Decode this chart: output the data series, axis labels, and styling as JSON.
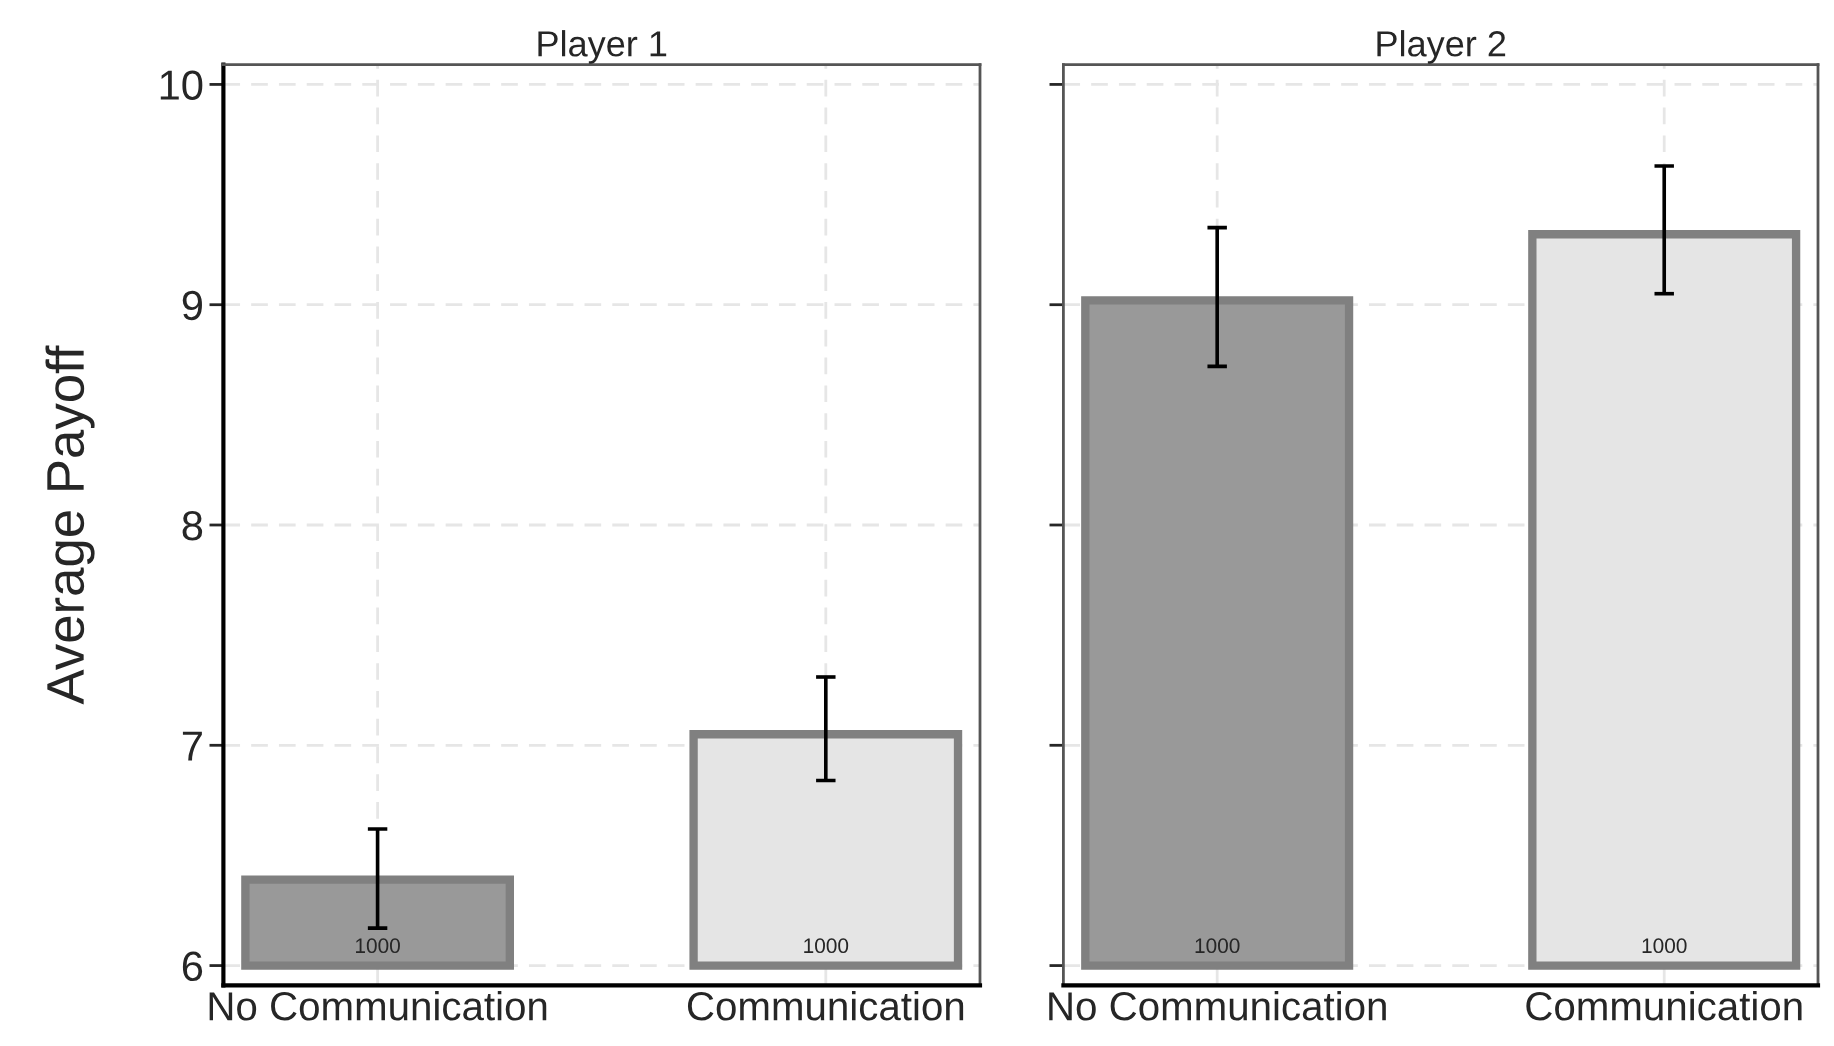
{
  "chart_data": [
    {
      "type": "bar",
      "title": "Player 1",
      "ylabel": "Average Payoff",
      "categories": [
        "No Communication",
        "Communication"
      ],
      "base": [
        6,
        6
      ],
      "values": [
        0.39,
        1.05
      ],
      "colors": [
        "#999999",
        "#e5e5e5"
      ],
      "errors": [
        [
          6.17,
          6.62
        ],
        [
          6.84,
          7.31
        ]
      ],
      "ylim": [
        5.91,
        10.09
      ],
      "yticks": [
        6,
        7,
        8,
        9,
        10
      ],
      "grid": true,
      "annotations": [
        "1000",
        "1000"
      ]
    },
    {
      "type": "bar",
      "title": "Player 2",
      "categories": [
        "No Communication",
        "Communication"
      ],
      "base": [
        6,
        6
      ],
      "values": [
        3.02,
        3.32
      ],
      "colors": [
        "#999999",
        "#e5e5e5"
      ],
      "errors": [
        [
          8.72,
          9.35
        ],
        [
          9.05,
          9.63
        ]
      ],
      "ylim": [
        5.91,
        10.09
      ],
      "yticks": [
        6,
        7,
        8,
        9,
        10
      ],
      "grid": true,
      "tick_labels": "x",
      "annotations": [
        "1000",
        "1000"
      ]
    }
  ]
}
